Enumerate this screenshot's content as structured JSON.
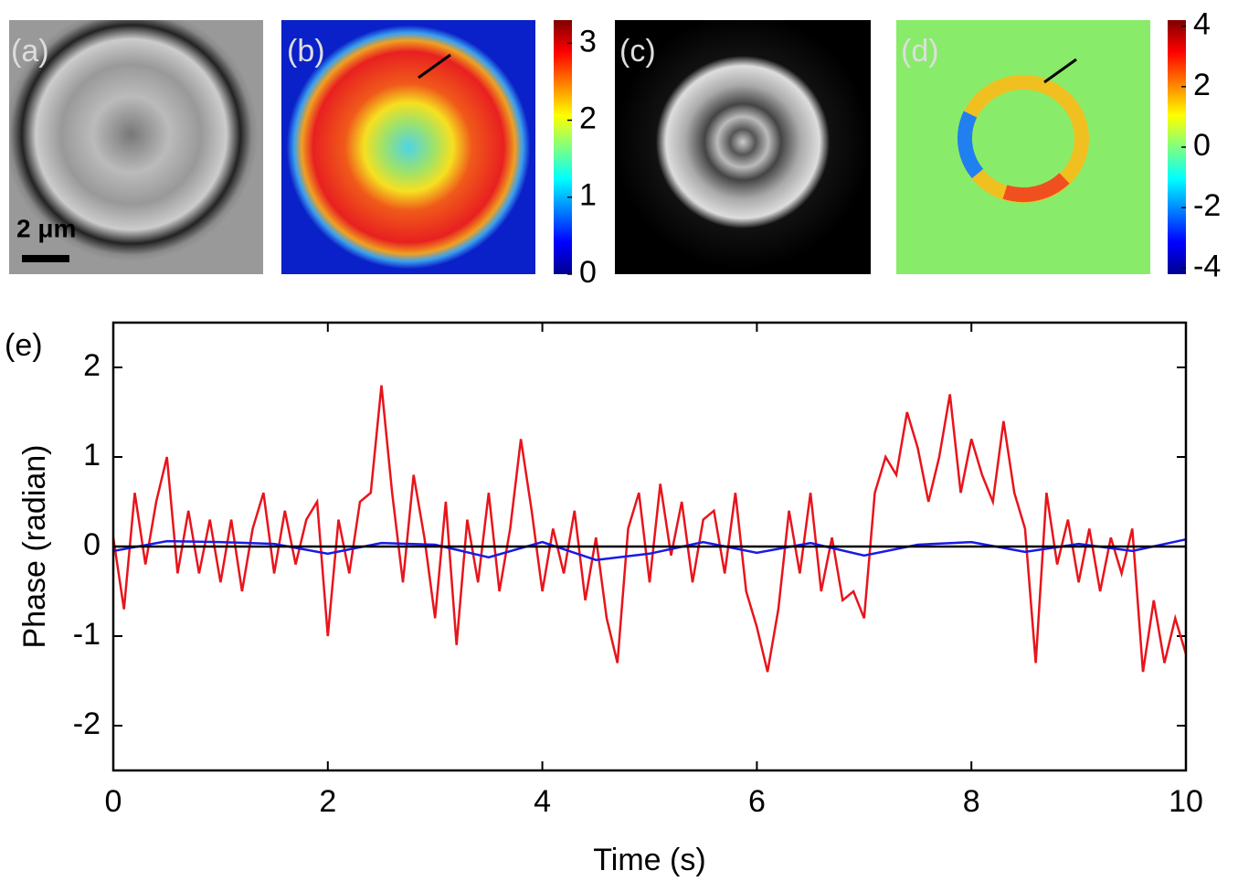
{
  "panels": [
    {
      "label": "(a)",
      "scale_bar": "2 μm"
    },
    {
      "label": "(b)"
    },
    {
      "label": "(c)"
    },
    {
      "label": "(d)"
    }
  ],
  "colorbars": [
    {
      "lim": [
        0,
        3.3
      ],
      "ticks": [
        0,
        1,
        2,
        3
      ]
    },
    {
      "lim": [
        -4.2,
        4.2
      ],
      "ticks": [
        -4,
        -2,
        0,
        2,
        4
      ]
    }
  ],
  "chart_data": {
    "type": "line",
    "panel_label": "(e)",
    "x_label": "Time (s)",
    "y_label": "Phase (radian)",
    "xlim": [
      0,
      10
    ],
    "ylim": [
      -2.5,
      2.5
    ],
    "xticks": [
      0,
      2,
      4,
      6,
      8,
      10
    ],
    "yticks": [
      -2,
      -1,
      0,
      1,
      2
    ],
    "series": [
      {
        "color": "#e8141b",
        "x": [
          0,
          0.1,
          0.2,
          0.3,
          0.4,
          0.5,
          0.6,
          0.7,
          0.8,
          0.9,
          1.0,
          1.1,
          1.2,
          1.3,
          1.4,
          1.5,
          1.6,
          1.7,
          1.8,
          1.9,
          2.0,
          2.1,
          2.2,
          2.3,
          2.4,
          2.5,
          2.6,
          2.7,
          2.8,
          2.9,
          3.0,
          3.1,
          3.2,
          3.3,
          3.4,
          3.5,
          3.6,
          3.7,
          3.8,
          3.9,
          4.0,
          4.1,
          4.2,
          4.3,
          4.4,
          4.5,
          4.6,
          4.7,
          4.8,
          4.9,
          5.0,
          5.1,
          5.2,
          5.3,
          5.4,
          5.5,
          5.6,
          5.7,
          5.8,
          5.9,
          6.0,
          6.1,
          6.2,
          6.3,
          6.4,
          6.5,
          6.6,
          6.7,
          6.8,
          6.9,
          7.0,
          7.1,
          7.2,
          7.3,
          7.4,
          7.5,
          7.6,
          7.7,
          7.8,
          7.9,
          8.0,
          8.1,
          8.2,
          8.3,
          8.4,
          8.5,
          8.6,
          8.7,
          8.8,
          8.9,
          9.0,
          9.1,
          9.2,
          9.3,
          9.4,
          9.5,
          9.6,
          9.7,
          9.8,
          9.9,
          10.0
        ],
        "values": [
          0.1,
          -0.7,
          0.6,
          -0.2,
          0.5,
          1.0,
          -0.3,
          0.4,
          -0.3,
          0.3,
          -0.4,
          0.3,
          -0.5,
          0.2,
          0.6,
          -0.3,
          0.4,
          -0.2,
          0.3,
          0.5,
          -1.0,
          0.3,
          -0.3,
          0.5,
          0.6,
          1.8,
          0.6,
          -0.4,
          0.8,
          0.1,
          -0.8,
          0.5,
          -1.1,
          0.3,
          -0.4,
          0.6,
          -0.5,
          0.2,
          1.2,
          0.4,
          -0.5,
          0.2,
          -0.3,
          0.4,
          -0.6,
          0.1,
          -0.8,
          -1.3,
          0.2,
          0.6,
          -0.4,
          0.7,
          -0.1,
          0.5,
          -0.4,
          0.3,
          0.4,
          -0.3,
          0.6,
          -0.5,
          -0.9,
          -1.4,
          -0.7,
          0.4,
          -0.3,
          0.6,
          -0.5,
          0.1,
          -0.6,
          -0.5,
          -0.8,
          0.6,
          1.0,
          0.8,
          1.5,
          1.1,
          0.5,
          1.0,
          1.7,
          0.6,
          1.2,
          0.8,
          0.5,
          1.4,
          0.6,
          0.2,
          -1.3,
          0.6,
          -0.2,
          0.3,
          -0.4,
          0.2,
          -0.5,
          0.1,
          -0.3,
          0.2,
          -1.4,
          -0.6,
          -1.3,
          -0.8,
          -1.2
        ]
      },
      {
        "color": "#1a1ae6",
        "x": [
          0,
          0.5,
          1.0,
          1.5,
          2.0,
          2.5,
          3.0,
          3.5,
          4.0,
          4.5,
          5.0,
          5.5,
          6.0,
          6.5,
          7.0,
          7.5,
          8.0,
          8.5,
          9.0,
          9.5,
          10.0
        ],
        "values": [
          -0.05,
          0.06,
          0.05,
          0.03,
          -0.08,
          0.04,
          0.02,
          -0.12,
          0.05,
          -0.15,
          -0.08,
          0.05,
          -0.07,
          0.04,
          -0.1,
          0.02,
          0.05,
          -0.06,
          0.03,
          -0.05,
          0.08
        ]
      },
      {
        "color": "#000000",
        "x": [
          0,
          10
        ],
        "values": [
          0,
          0
        ]
      }
    ]
  }
}
